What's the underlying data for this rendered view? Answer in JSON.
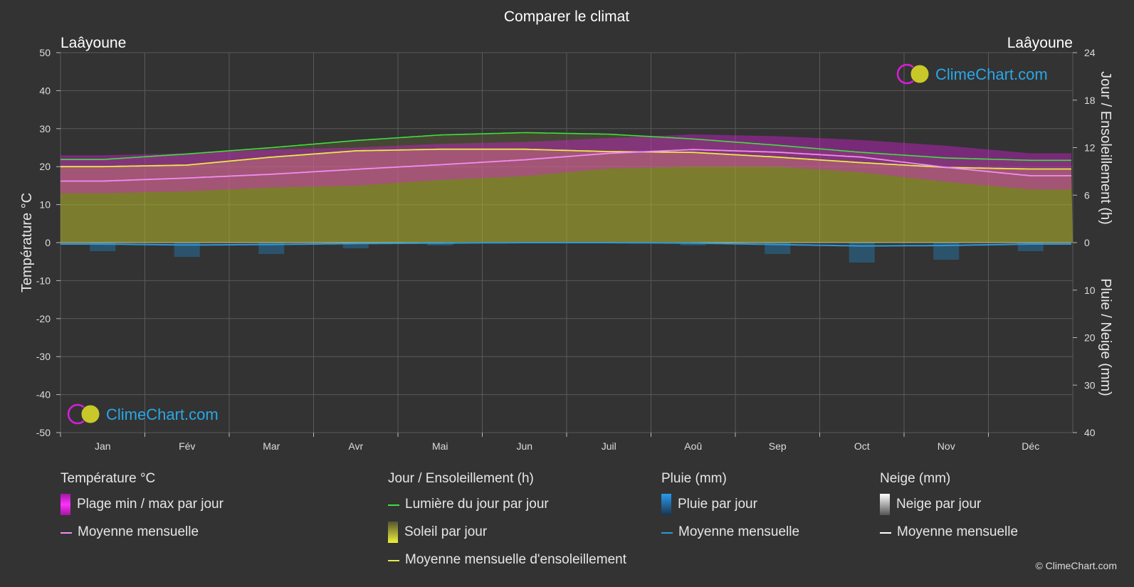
{
  "colors": {
    "background": "#333333",
    "grid": "#5a5a5a",
    "temp_band": "#d81fd8",
    "temp_mean": "#f28cf2",
    "daylight": "#3ee03e",
    "sunshine_fill": "#b8b82a",
    "sunshine_mean": "#e9e94a",
    "rain": "#1f8fd8",
    "rain_mean": "#2a9bd8",
    "snow_mean": "#ffffff",
    "brand": "#2aa7e8"
  },
  "chart_data": {
    "type": "area",
    "title": "Comparer le climat",
    "location_left": "Laâyoune",
    "location_right": "Laâyoune",
    "ylabel_left": "Température °C",
    "ylabel_right_top": "Jour / Ensoleillement (h)",
    "ylabel_right_bottom": "Pluie / Neige (mm)",
    "left_ylim": [
      -50,
      50
    ],
    "left_ticks": [
      "50",
      "40",
      "30",
      "20",
      "10",
      "0",
      "-10",
      "-20",
      "-30",
      "-40",
      "-50"
    ],
    "right_top_ticks": [
      "24",
      "18",
      "12",
      "6",
      "0"
    ],
    "right_bottom_ticks": [
      "10",
      "20",
      "30",
      "40"
    ],
    "sun_ylim": [
      0,
      24
    ],
    "rain_ylim": [
      0,
      40
    ],
    "months": [
      "Jan",
      "Fév",
      "Mar",
      "Avr",
      "Mai",
      "Jun",
      "Juil",
      "Aoû",
      "Sep",
      "Oct",
      "Nov",
      "Déc"
    ],
    "series": [
      {
        "key": "temp_max",
        "values": [
          23,
          23.5,
          24.5,
          25,
          26,
          26.5,
          27.5,
          28.5,
          28,
          27,
          25.5,
          23.5
        ]
      },
      {
        "key": "temp_min",
        "values": [
          13,
          13.5,
          14.5,
          15,
          16.5,
          17.5,
          19.5,
          20,
          20,
          18.5,
          16,
          14
        ]
      },
      {
        "key": "temp_mean",
        "values": [
          16.2,
          17,
          18,
          19.3,
          20.5,
          21.8,
          23.5,
          24.5,
          23.8,
          22.5,
          19.8,
          17.6
        ]
      },
      {
        "key": "daylight",
        "values": [
          10.5,
          11.2,
          12,
          12.9,
          13.6,
          13.9,
          13.7,
          13.1,
          12.3,
          11.4,
          10.7,
          10.4
        ]
      },
      {
        "key": "sunshine",
        "values": [
          9.6,
          9.8,
          10.8,
          11.6,
          11.8,
          11.8,
          11.5,
          11.4,
          10.8,
          10.1,
          9.5,
          9.3
        ]
      },
      {
        "key": "rain_mean",
        "values": [
          0.3,
          0.5,
          0.4,
          0.2,
          0.1,
          0.0,
          0.0,
          0.1,
          0.4,
          0.7,
          0.6,
          0.3
        ]
      },
      {
        "key": "snow_mean",
        "values": [
          0,
          0,
          0,
          0,
          0,
          0,
          0,
          0,
          0,
          0,
          0,
          0
        ]
      }
    ]
  },
  "legend": {
    "temperature": {
      "heading": "Température °C",
      "band": "Plage min / max par jour",
      "mean": "Moyenne mensuelle"
    },
    "sun": {
      "heading": "Jour / Ensoleillement (h)",
      "daylight": "Lumière du jour par jour",
      "sunshine": "Soleil par jour",
      "mean": "Moyenne mensuelle d'ensoleillement"
    },
    "rain": {
      "heading": "Pluie (mm)",
      "daily": "Pluie par jour",
      "mean": "Moyenne mensuelle"
    },
    "snow": {
      "heading": "Neige (mm)",
      "daily": "Neige par jour",
      "mean": "Moyenne mensuelle"
    }
  },
  "brand": {
    "logo_text": "ClimeChart.com",
    "copyright": "© ClimeChart.com"
  }
}
